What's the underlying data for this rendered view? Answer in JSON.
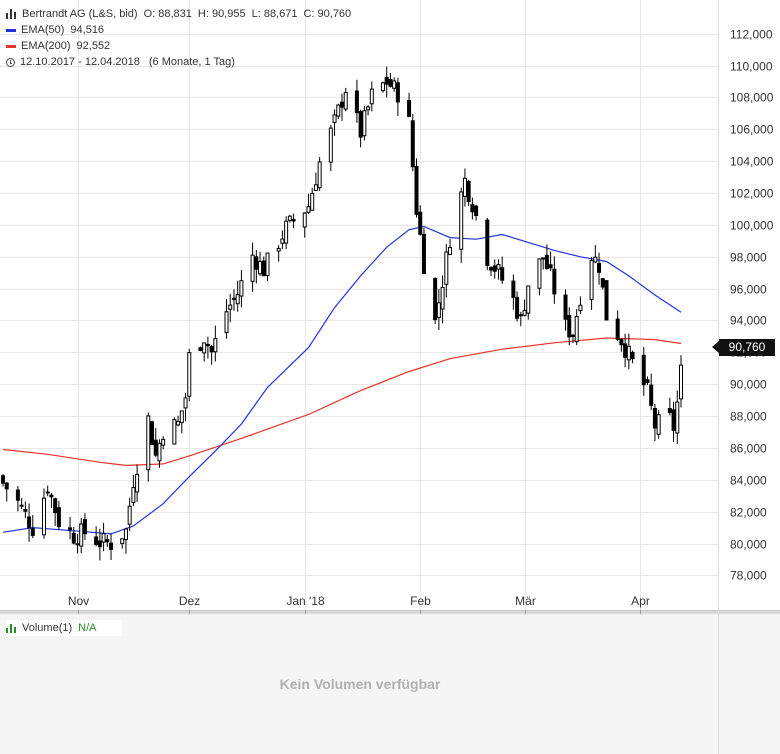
{
  "header": {
    "title": "Bertrandt AG (L&S, bid)",
    "open": "O: 88,831",
    "high": "H: 90,955",
    "low": "L: 88,671",
    "close": "C: 90,760"
  },
  "legend": {
    "ema50_label": "EMA(50)",
    "ema50_value": "94,516",
    "ema200_label": "EMA(200)",
    "ema200_value": "92,552",
    "period": "12.10.2017 - 12.04.2018",
    "period_note": "(6 Monate, 1 Tag)"
  },
  "last_price_badge": "90,760",
  "volume_panel": {
    "label": "Volume(1)",
    "value": "N/A",
    "message": "Kein Volumen verfügbar"
  },
  "colors": {
    "ema50": "#2233dd",
    "ema200": "#e8332a",
    "candle": "#000000",
    "volume": "#2e8b2e",
    "grid": "#e8e8e8"
  },
  "chart_data": {
    "type": "candlestick",
    "y_range": [
      77000,
      113000
    ],
    "y_ticks": [
      78000,
      80000,
      82000,
      84000,
      86000,
      88000,
      90000,
      92000,
      94000,
      96000,
      98000,
      100000,
      102000,
      104000,
      106000,
      108000,
      110000,
      112000
    ],
    "y_tick_labels": [
      "78,000",
      "80,000",
      "82,000",
      "84,000",
      "86,000",
      "88,000",
      "90,000",
      "92,000",
      "94,000",
      "96,000",
      "98,000",
      "100,000",
      "102,000",
      "104,000",
      "106,000",
      "108,000",
      "110,000",
      "112,000"
    ],
    "x_labels": [
      {
        "label": "Nov",
        "date": "2017-11-01"
      },
      {
        "label": "Dez",
        "date": "2017-12-01"
      },
      {
        "label": "Jan '18",
        "date": "2018-01-01"
      },
      {
        "label": "Feb",
        "date": "2018-02-01"
      },
      {
        "label": "Mär",
        "date": "2018-03-01"
      },
      {
        "label": "Apr",
        "date": "2018-04-01"
      }
    ],
    "grid": true,
    "close_series": [
      [
        "2017-10-12",
        83.8
      ],
      [
        "2017-10-16",
        82.6
      ],
      [
        "2017-10-20",
        81.0
      ],
      [
        "2017-10-24",
        83.6
      ],
      [
        "2017-10-27",
        81.4
      ],
      [
        "2017-10-31",
        80.5
      ],
      [
        "2017-11-03",
        80.7
      ],
      [
        "2017-11-07",
        80.1
      ],
      [
        "2017-11-10",
        80.0
      ],
      [
        "2017-11-14",
        80.8
      ],
      [
        "2017-11-16",
        84.0
      ],
      [
        "2017-11-20",
        87.8
      ],
      [
        "2017-11-22",
        85.5
      ],
      [
        "2017-11-24",
        87.1
      ],
      [
        "2017-11-28",
        87.5
      ],
      [
        "2017-11-30",
        89.2
      ],
      [
        "2017-12-01",
        91.7
      ],
      [
        "2017-12-05",
        93.0
      ],
      [
        "2017-12-07",
        92.0
      ],
      [
        "2017-12-11",
        94.6
      ],
      [
        "2017-12-14",
        95.7
      ],
      [
        "2017-12-18",
        98.1
      ],
      [
        "2017-12-21",
        97.2
      ],
      [
        "2017-12-27",
        99.8
      ],
      [
        "2018-01-02",
        101.2
      ],
      [
        "2018-01-05",
        103.9
      ],
      [
        "2018-01-09",
        106.4
      ],
      [
        "2018-01-12",
        108.6
      ],
      [
        "2018-01-16",
        105.8
      ],
      [
        "2018-01-19",
        108.1
      ],
      [
        "2018-01-23",
        109.0
      ],
      [
        "2018-01-26",
        108.3
      ],
      [
        "2018-01-29",
        106.4
      ],
      [
        "2018-01-31",
        101.0
      ],
      [
        "2018-02-02",
        97.6
      ],
      [
        "2018-02-05",
        93.9
      ],
      [
        "2018-02-07",
        96.5
      ],
      [
        "2018-02-09",
        99.2
      ],
      [
        "2018-02-13",
        102.8
      ],
      [
        "2018-02-15",
        101.4
      ],
      [
        "2018-02-19",
        98.0
      ],
      [
        "2018-02-22",
        97.0
      ],
      [
        "2018-02-26",
        95.3
      ],
      [
        "2018-02-28",
        94.0
      ],
      [
        "2018-03-02",
        96.3
      ],
      [
        "2018-03-06",
        98.0
      ],
      [
        "2018-03-08",
        96.7
      ],
      [
        "2018-03-12",
        93.6
      ],
      [
        "2018-03-14",
        93.2
      ],
      [
        "2018-03-16",
        95.6
      ],
      [
        "2018-03-19",
        98.1
      ],
      [
        "2018-03-21",
        97.5
      ],
      [
        "2018-03-23",
        94.3
      ],
      [
        "2018-03-27",
        92.8
      ],
      [
        "2018-03-29",
        91.8
      ],
      [
        "2018-04-03",
        89.5
      ],
      [
        "2018-04-05",
        87.4
      ],
      [
        "2018-04-09",
        87.8
      ],
      [
        "2018-04-10",
        87.3
      ],
      [
        "2018-04-11",
        88.8
      ],
      [
        "2018-04-12",
        90.76
      ]
    ],
    "series": [
      {
        "name": "EMA(50)",
        "last_value": 94.516,
        "values": [
          [
            "2017-10-12",
            80.7
          ],
          [
            "2017-10-20",
            81.0
          ],
          [
            "2017-10-31",
            80.8
          ],
          [
            "2017-11-10",
            80.6
          ],
          [
            "2017-11-16",
            81.1
          ],
          [
            "2017-11-24",
            82.5
          ],
          [
            "2017-12-01",
            84.2
          ],
          [
            "2017-12-08",
            85.8
          ],
          [
            "2017-12-15",
            87.5
          ],
          [
            "2017-12-22",
            89.8
          ],
          [
            "2018-01-02",
            92.3
          ],
          [
            "2018-01-09",
            94.8
          ],
          [
            "2018-01-16",
            96.8
          ],
          [
            "2018-01-23",
            98.6
          ],
          [
            "2018-01-29",
            99.7
          ],
          [
            "2018-02-02",
            99.9
          ],
          [
            "2018-02-09",
            99.2
          ],
          [
            "2018-02-16",
            99.1
          ],
          [
            "2018-02-23",
            99.4
          ],
          [
            "2018-03-02",
            98.9
          ],
          [
            "2018-03-09",
            98.4
          ],
          [
            "2018-03-16",
            98.0
          ],
          [
            "2018-03-23",
            97.7
          ],
          [
            "2018-03-29",
            96.8
          ],
          [
            "2018-04-05",
            95.6
          ],
          [
            "2018-04-12",
            94.516
          ]
        ]
      },
      {
        "name": "EMA(200)",
        "last_value": 92.552,
        "values": [
          [
            "2017-10-12",
            85.9
          ],
          [
            "2017-10-24",
            85.6
          ],
          [
            "2017-11-07",
            85.1
          ],
          [
            "2017-11-14",
            84.9
          ],
          [
            "2017-11-24",
            85.0
          ],
          [
            "2017-12-01",
            85.5
          ],
          [
            "2017-12-15",
            86.6
          ],
          [
            "2018-01-02",
            88.1
          ],
          [
            "2018-01-16",
            89.6
          ],
          [
            "2018-01-29",
            90.8
          ],
          [
            "2018-02-09",
            91.6
          ],
          [
            "2018-02-23",
            92.2
          ],
          [
            "2018-03-09",
            92.6
          ],
          [
            "2018-03-23",
            92.9
          ],
          [
            "2018-04-05",
            92.8
          ],
          [
            "2018-04-12",
            92.552
          ]
        ]
      }
    ]
  }
}
